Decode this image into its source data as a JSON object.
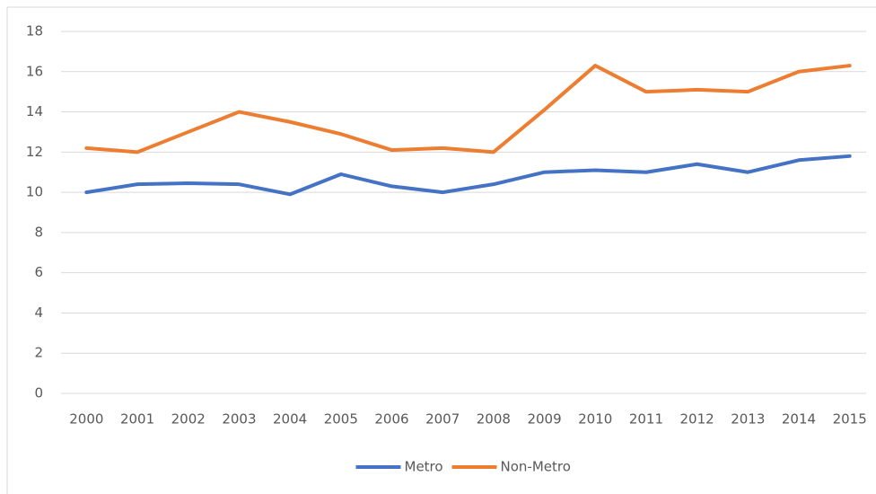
{
  "chart_data": {
    "type": "line",
    "categories": [
      "2000",
      "2001",
      "2002",
      "2003",
      "2004",
      "2005",
      "2006",
      "2007",
      "2008",
      "2009",
      "2010",
      "2011",
      "2012",
      "2013",
      "2014",
      "2015"
    ],
    "series": [
      {
        "name": "Metro",
        "color": "#4472c4",
        "values": [
          10.0,
          10.4,
          10.45,
          10.4,
          9.9,
          10.9,
          10.3,
          10.0,
          10.4,
          11.0,
          11.1,
          11.0,
          11.4,
          11.0,
          11.6,
          11.8
        ]
      },
      {
        "name": "Non-Metro",
        "color": "#ed7d31",
        "values": [
          12.2,
          12.0,
          13.0,
          14.0,
          13.5,
          12.9,
          12.1,
          12.2,
          12.0,
          14.1,
          16.3,
          15.0,
          15.1,
          15.0,
          16.0,
          16.3
        ]
      }
    ],
    "ylim": [
      0,
      18
    ],
    "yticks": [
      0,
      2,
      4,
      6,
      8,
      10,
      12,
      14,
      16,
      18
    ],
    "grid": true,
    "legend": "bottom"
  }
}
